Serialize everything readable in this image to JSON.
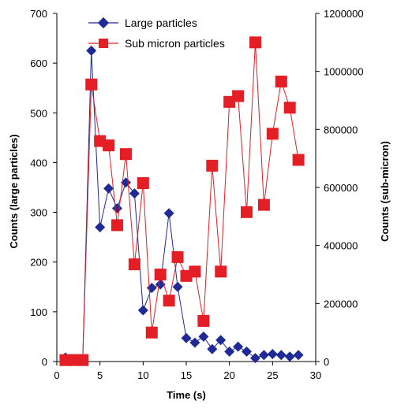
{
  "chart_data": {
    "type": "line",
    "title": "",
    "xlabel": "Time (s)",
    "ylabel_left": "Counts (large particles)",
    "ylabel_right": "Counts (sub-micron)",
    "xlim": [
      0,
      30
    ],
    "ylim_left": [
      0,
      700
    ],
    "ylim_right": [
      0,
      1200000
    ],
    "x_ticks": [
      "0",
      "5",
      "10",
      "15",
      "20",
      "25",
      "30"
    ],
    "y_left_ticks": [
      "0",
      "100",
      "200",
      "300",
      "400",
      "500",
      "600",
      "700"
    ],
    "y_right_ticks": [
      "0",
      "200000",
      "400000",
      "600000",
      "800000",
      "1000000",
      "1200000"
    ],
    "grid": false,
    "legend_position": "top",
    "series": [
      {
        "name": "Large particles",
        "axis": "left",
        "color": "#1f2a96",
        "marker": "diamond",
        "x": [
          1,
          2,
          3,
          4,
          5,
          6,
          7,
          8,
          9,
          10,
          11,
          12,
          13,
          14,
          15,
          16,
          17,
          18,
          19,
          20,
          21,
          22,
          23,
          24,
          25,
          26,
          27,
          28
        ],
        "y": [
          8,
          5,
          5,
          625,
          270,
          348,
          308,
          360,
          338,
          103,
          148,
          155,
          298,
          150,
          47,
          38,
          50,
          25,
          43,
          20,
          30,
          20,
          7,
          13,
          15,
          13,
          10,
          13
        ]
      },
      {
        "name": "Sub micron particles",
        "axis": "right",
        "color": "#e31e24",
        "marker": "square",
        "x": [
          1,
          2,
          3,
          4,
          5,
          6,
          7,
          8,
          9,
          10,
          11,
          12,
          13,
          14,
          15,
          16,
          17,
          18,
          19,
          20,
          21,
          22,
          23,
          24,
          25,
          26,
          27,
          28
        ],
        "y": [
          5000,
          5000,
          5000,
          955000,
          760000,
          745000,
          470000,
          715000,
          335000,
          615000,
          100000,
          300000,
          210000,
          360000,
          295000,
          310000,
          140000,
          675000,
          310000,
          895000,
          915000,
          515000,
          1100000,
          540000,
          785000,
          965000,
          875000,
          695000
        ]
      }
    ]
  }
}
